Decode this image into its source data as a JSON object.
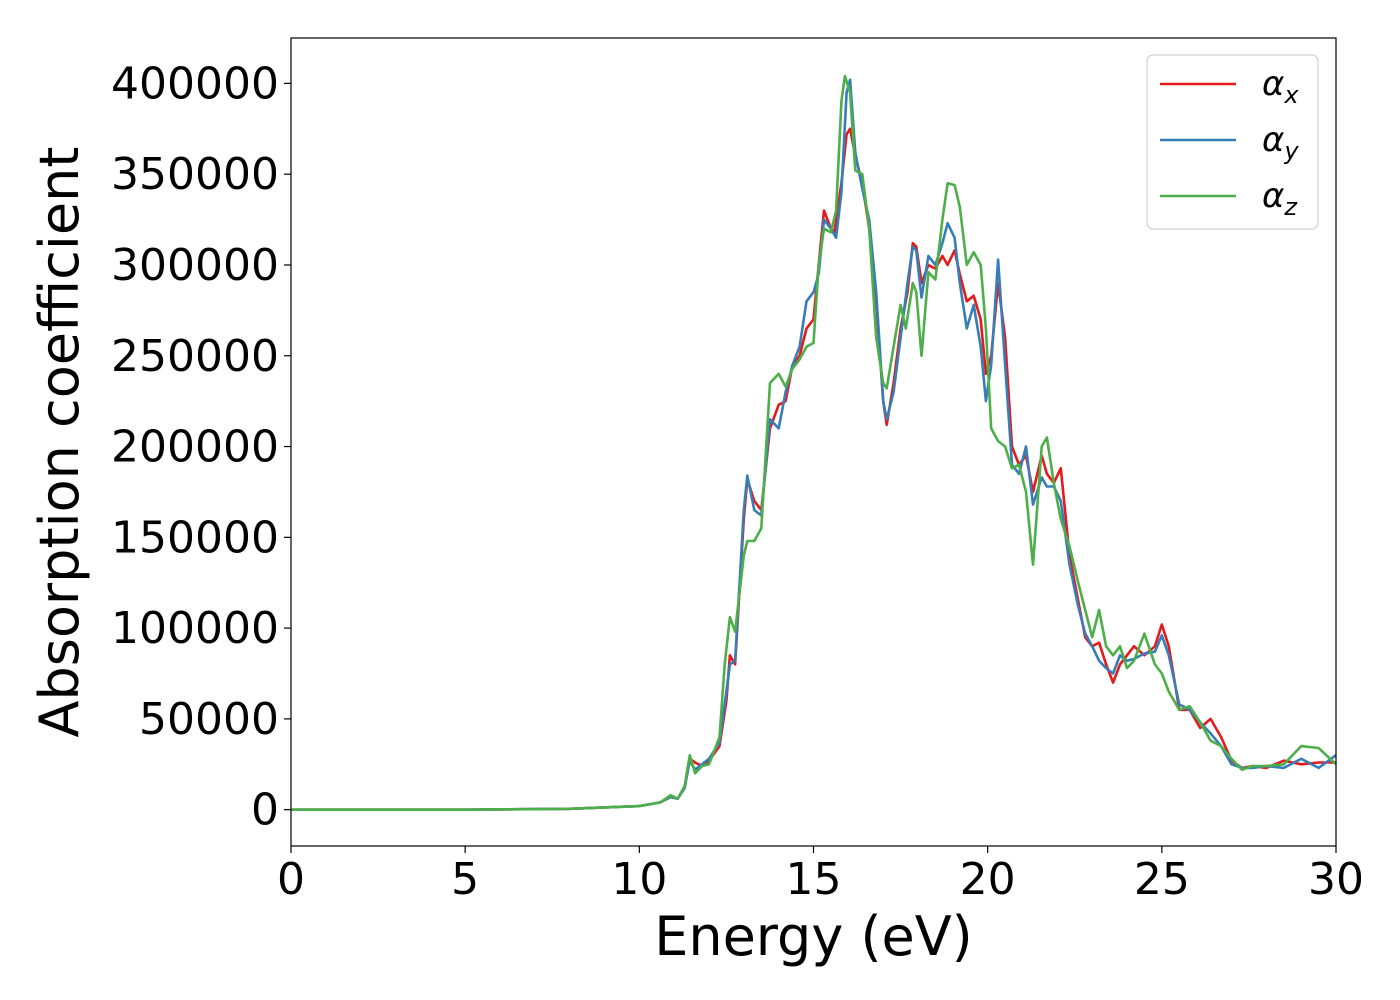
{
  "chart_data": {
    "type": "line",
    "title": "",
    "xlabel": "Energy (eV)",
    "ylabel": "Absorption coefficient",
    "xlim": [
      0,
      30
    ],
    "ylim": [
      -20000,
      425000
    ],
    "xticks": [
      0,
      5,
      10,
      15,
      20,
      25,
      30
    ],
    "yticks": [
      0,
      50000,
      100000,
      150000,
      200000,
      250000,
      300000,
      350000,
      400000
    ],
    "grid": false,
    "legend_position": "top-right",
    "series": [
      {
        "name": "αx",
        "legend_base": "α",
        "legend_sub": "x",
        "color": "#e41a1c",
        "points": [
          [
            0,
            0
          ],
          [
            5,
            0
          ],
          [
            8,
            500
          ],
          [
            10,
            2000
          ],
          [
            10.6,
            4000
          ],
          [
            10.9,
            7000
          ],
          [
            11.1,
            6000
          ],
          [
            11.3,
            12000
          ],
          [
            11.45,
            28000
          ],
          [
            11.6,
            26000
          ],
          [
            11.8,
            24000
          ],
          [
            12.0,
            27000
          ],
          [
            12.3,
            35000
          ],
          [
            12.5,
            60000
          ],
          [
            12.6,
            85000
          ],
          [
            12.75,
            80000
          ],
          [
            13.0,
            160000
          ],
          [
            13.1,
            182000
          ],
          [
            13.3,
            170000
          ],
          [
            13.5,
            165000
          ],
          [
            13.75,
            210000
          ],
          [
            14.0,
            223000
          ],
          [
            14.2,
            225000
          ],
          [
            14.4,
            245000
          ],
          [
            14.6,
            250000
          ],
          [
            14.8,
            265000
          ],
          [
            15.0,
            270000
          ],
          [
            15.15,
            300000
          ],
          [
            15.3,
            330000
          ],
          [
            15.5,
            320000
          ],
          [
            15.6,
            318000
          ],
          [
            15.8,
            345000
          ],
          [
            15.95,
            372000
          ],
          [
            16.05,
            375000
          ],
          [
            16.2,
            360000
          ],
          [
            16.4,
            345000
          ],
          [
            16.6,
            320000
          ],
          [
            16.8,
            280000
          ],
          [
            17.0,
            225000
          ],
          [
            17.1,
            212000
          ],
          [
            17.3,
            235000
          ],
          [
            17.5,
            265000
          ],
          [
            17.7,
            285000
          ],
          [
            17.85,
            312000
          ],
          [
            17.95,
            310000
          ],
          [
            18.1,
            290000
          ],
          [
            18.3,
            300000
          ],
          [
            18.5,
            298000
          ],
          [
            18.7,
            305000
          ],
          [
            18.85,
            300000
          ],
          [
            19.05,
            308000
          ],
          [
            19.2,
            295000
          ],
          [
            19.4,
            280000
          ],
          [
            19.6,
            283000
          ],
          [
            19.8,
            270000
          ],
          [
            19.95,
            240000
          ],
          [
            20.1,
            250000
          ],
          [
            20.3,
            290000
          ],
          [
            20.5,
            260000
          ],
          [
            20.7,
            200000
          ],
          [
            20.9,
            190000
          ],
          [
            21.1,
            195000
          ],
          [
            21.3,
            175000
          ],
          [
            21.55,
            195000
          ],
          [
            21.7,
            185000
          ],
          [
            21.9,
            180000
          ],
          [
            22.1,
            188000
          ],
          [
            22.35,
            140000
          ],
          [
            22.6,
            115000
          ],
          [
            22.8,
            95000
          ],
          [
            23.0,
            90000
          ],
          [
            23.2,
            92000
          ],
          [
            23.4,
            80000
          ],
          [
            23.6,
            70000
          ],
          [
            23.8,
            80000
          ],
          [
            24.0,
            85000
          ],
          [
            24.2,
            90000
          ],
          [
            24.5,
            85000
          ],
          [
            24.8,
            90000
          ],
          [
            25.0,
            102000
          ],
          [
            25.2,
            90000
          ],
          [
            25.5,
            55000
          ],
          [
            25.8,
            55000
          ],
          [
            26.1,
            45000
          ],
          [
            26.4,
            50000
          ],
          [
            26.7,
            40000
          ],
          [
            27.0,
            27000
          ],
          [
            27.3,
            23000
          ],
          [
            27.6,
            24000
          ],
          [
            28.0,
            23000
          ],
          [
            28.5,
            27000
          ],
          [
            29.0,
            25000
          ],
          [
            29.5,
            26000
          ],
          [
            30.0,
            26000
          ]
        ]
      },
      {
        "name": "αy",
        "legend_base": "α",
        "legend_sub": "y",
        "color": "#377eb8",
        "points": [
          [
            0,
            0
          ],
          [
            5,
            0
          ],
          [
            8,
            500
          ],
          [
            10,
            2000
          ],
          [
            10.6,
            4000
          ],
          [
            10.9,
            7000
          ],
          [
            11.1,
            6000
          ],
          [
            11.3,
            12000
          ],
          [
            11.45,
            27000
          ],
          [
            11.6,
            22000
          ],
          [
            11.8,
            25000
          ],
          [
            12.0,
            28000
          ],
          [
            12.3,
            37000
          ],
          [
            12.5,
            65000
          ],
          [
            12.6,
            80000
          ],
          [
            12.75,
            82000
          ],
          [
            13.0,
            165000
          ],
          [
            13.1,
            184000
          ],
          [
            13.3,
            165000
          ],
          [
            13.5,
            162000
          ],
          [
            13.75,
            215000
          ],
          [
            14.0,
            210000
          ],
          [
            14.2,
            230000
          ],
          [
            14.4,
            245000
          ],
          [
            14.6,
            255000
          ],
          [
            14.8,
            280000
          ],
          [
            15.0,
            285000
          ],
          [
            15.15,
            295000
          ],
          [
            15.3,
            325000
          ],
          [
            15.5,
            320000
          ],
          [
            15.65,
            315000
          ],
          [
            15.8,
            340000
          ],
          [
            15.95,
            395000
          ],
          [
            16.05,
            402000
          ],
          [
            16.2,
            362000
          ],
          [
            16.4,
            342000
          ],
          [
            16.6,
            325000
          ],
          [
            16.8,
            285000
          ],
          [
            17.0,
            225000
          ],
          [
            17.1,
            215000
          ],
          [
            17.3,
            230000
          ],
          [
            17.5,
            260000
          ],
          [
            17.7,
            290000
          ],
          [
            17.85,
            310000
          ],
          [
            17.95,
            308000
          ],
          [
            18.1,
            282000
          ],
          [
            18.3,
            305000
          ],
          [
            18.5,
            300000
          ],
          [
            18.7,
            312000
          ],
          [
            18.85,
            323000
          ],
          [
            19.05,
            315000
          ],
          [
            19.2,
            290000
          ],
          [
            19.4,
            265000
          ],
          [
            19.6,
            278000
          ],
          [
            19.8,
            255000
          ],
          [
            19.95,
            225000
          ],
          [
            20.1,
            245000
          ],
          [
            20.3,
            303000
          ],
          [
            20.5,
            245000
          ],
          [
            20.7,
            190000
          ],
          [
            20.9,
            185000
          ],
          [
            21.1,
            200000
          ],
          [
            21.3,
            168000
          ],
          [
            21.55,
            183000
          ],
          [
            21.7,
            178000
          ],
          [
            21.9,
            178000
          ],
          [
            22.1,
            170000
          ],
          [
            22.35,
            135000
          ],
          [
            22.6,
            112000
          ],
          [
            22.8,
            97000
          ],
          [
            23.0,
            90000
          ],
          [
            23.2,
            82000
          ],
          [
            23.4,
            78000
          ],
          [
            23.6,
            75000
          ],
          [
            23.8,
            85000
          ],
          [
            24.0,
            82000
          ],
          [
            24.2,
            83000
          ],
          [
            24.5,
            86000
          ],
          [
            24.8,
            87000
          ],
          [
            25.0,
            96000
          ],
          [
            25.2,
            85000
          ],
          [
            25.5,
            58000
          ],
          [
            25.8,
            55000
          ],
          [
            26.1,
            48000
          ],
          [
            26.4,
            42000
          ],
          [
            26.7,
            35000
          ],
          [
            27.0,
            25000
          ],
          [
            27.3,
            23000
          ],
          [
            27.6,
            23000
          ],
          [
            28.0,
            24000
          ],
          [
            28.5,
            23000
          ],
          [
            29.0,
            28000
          ],
          [
            29.5,
            23000
          ],
          [
            30.0,
            30000
          ]
        ]
      },
      {
        "name": "αz",
        "legend_base": "α",
        "legend_sub": "z",
        "color": "#4daf4a",
        "points": [
          [
            0,
            0
          ],
          [
            5,
            0
          ],
          [
            8,
            500
          ],
          [
            10,
            2000
          ],
          [
            10.6,
            4000
          ],
          [
            10.9,
            8000
          ],
          [
            11.1,
            6000
          ],
          [
            11.3,
            13000
          ],
          [
            11.45,
            30000
          ],
          [
            11.6,
            20000
          ],
          [
            11.8,
            24000
          ],
          [
            12.0,
            25000
          ],
          [
            12.3,
            40000
          ],
          [
            12.45,
            80000
          ],
          [
            12.6,
            106000
          ],
          [
            12.75,
            98000
          ],
          [
            13.0,
            140000
          ],
          [
            13.1,
            148000
          ],
          [
            13.3,
            148000
          ],
          [
            13.5,
            155000
          ],
          [
            13.75,
            235000
          ],
          [
            14.0,
            240000
          ],
          [
            14.2,
            233000
          ],
          [
            14.4,
            243000
          ],
          [
            14.6,
            248000
          ],
          [
            14.8,
            255000
          ],
          [
            15.0,
            257000
          ],
          [
            15.15,
            300000
          ],
          [
            15.3,
            320000
          ],
          [
            15.5,
            318000
          ],
          [
            15.65,
            330000
          ],
          [
            15.8,
            390000
          ],
          [
            15.9,
            404000
          ],
          [
            16.05,
            395000
          ],
          [
            16.2,
            352000
          ],
          [
            16.4,
            350000
          ],
          [
            16.6,
            320000
          ],
          [
            16.8,
            260000
          ],
          [
            17.0,
            235000
          ],
          [
            17.1,
            232000
          ],
          [
            17.3,
            255000
          ],
          [
            17.5,
            278000
          ],
          [
            17.65,
            265000
          ],
          [
            17.85,
            290000
          ],
          [
            17.95,
            285000
          ],
          [
            18.1,
            250000
          ],
          [
            18.3,
            296000
          ],
          [
            18.5,
            292000
          ],
          [
            18.7,
            325000
          ],
          [
            18.85,
            345000
          ],
          [
            19.05,
            344000
          ],
          [
            19.2,
            332000
          ],
          [
            19.4,
            300000
          ],
          [
            19.6,
            307000
          ],
          [
            19.8,
            300000
          ],
          [
            19.95,
            265000
          ],
          [
            20.1,
            210000
          ],
          [
            20.3,
            203000
          ],
          [
            20.5,
            200000
          ],
          [
            20.7,
            188000
          ],
          [
            20.9,
            190000
          ],
          [
            21.1,
            175000
          ],
          [
            21.3,
            135000
          ],
          [
            21.55,
            200000
          ],
          [
            21.7,
            205000
          ],
          [
            21.9,
            180000
          ],
          [
            22.1,
            160000
          ],
          [
            22.35,
            145000
          ],
          [
            22.6,
            125000
          ],
          [
            22.8,
            110000
          ],
          [
            23.0,
            95000
          ],
          [
            23.2,
            110000
          ],
          [
            23.4,
            90000
          ],
          [
            23.6,
            85000
          ],
          [
            23.8,
            90000
          ],
          [
            24.0,
            78000
          ],
          [
            24.2,
            82000
          ],
          [
            24.5,
            97000
          ],
          [
            24.8,
            80000
          ],
          [
            25.0,
            75000
          ],
          [
            25.2,
            65000
          ],
          [
            25.5,
            55000
          ],
          [
            25.8,
            57000
          ],
          [
            26.1,
            48000
          ],
          [
            26.4,
            38000
          ],
          [
            26.7,
            35000
          ],
          [
            27.0,
            28000
          ],
          [
            27.3,
            22000
          ],
          [
            27.6,
            24000
          ],
          [
            28.0,
            24000
          ],
          [
            28.5,
            25000
          ],
          [
            29.0,
            35000
          ],
          [
            29.5,
            34000
          ],
          [
            30.0,
            25000
          ]
        ]
      }
    ]
  }
}
